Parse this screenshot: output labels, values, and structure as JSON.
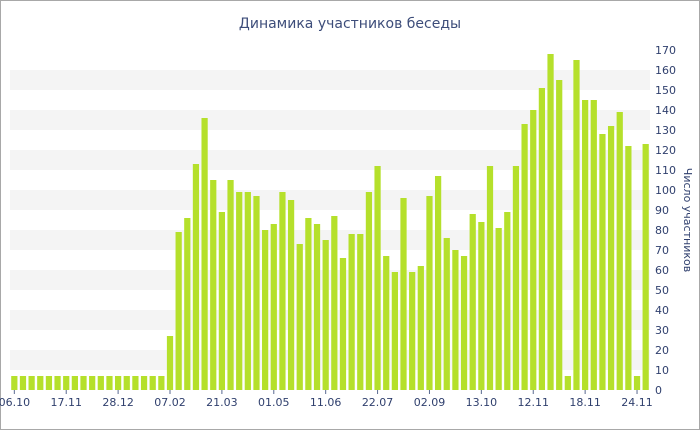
{
  "chart_data": {
    "type": "bar",
    "title": "Динамика участников беседы",
    "ylabel": "Число участников",
    "xlabel": "",
    "ylim": [
      0,
      170
    ],
    "y_ticks": [
      0,
      10,
      20,
      30,
      40,
      50,
      60,
      70,
      80,
      90,
      100,
      110,
      120,
      130,
      140,
      150,
      160,
      170
    ],
    "x_ticks": [
      {
        "label": "06.10",
        "index": 0
      },
      {
        "label": "17.11",
        "index": 6
      },
      {
        "label": "28.12",
        "index": 12
      },
      {
        "label": "07.02",
        "index": 18
      },
      {
        "label": "21.03",
        "index": 24
      },
      {
        "label": "01.05",
        "index": 30
      },
      {
        "label": "11.06",
        "index": 36
      },
      {
        "label": "22.07",
        "index": 42
      },
      {
        "label": "02.09",
        "index": 48
      },
      {
        "label": "13.10",
        "index": 54
      },
      {
        "label": "12.11",
        "index": 60
      },
      {
        "label": "18.11",
        "index": 66
      },
      {
        "label": "24.11",
        "index": 72
      }
    ],
    "bar_color": "#b5e02b",
    "stripe_color": "#f4f4f4",
    "grid": true,
    "values": [
      7,
      7,
      7,
      7,
      7,
      7,
      7,
      7,
      7,
      7,
      7,
      7,
      7,
      7,
      7,
      7,
      7,
      7,
      27,
      79,
      86,
      113,
      136,
      105,
      89,
      105,
      99,
      99,
      97,
      80,
      83,
      99,
      95,
      73,
      86,
      83,
      75,
      87,
      66,
      78,
      78,
      99,
      112,
      67,
      59,
      96,
      59,
      62,
      97,
      107,
      76,
      70,
      67,
      88,
      84,
      112,
      81,
      89,
      112,
      133,
      140,
      151,
      168,
      155,
      7,
      165,
      145,
      145,
      128,
      132,
      139,
      122,
      7,
      123
    ]
  }
}
